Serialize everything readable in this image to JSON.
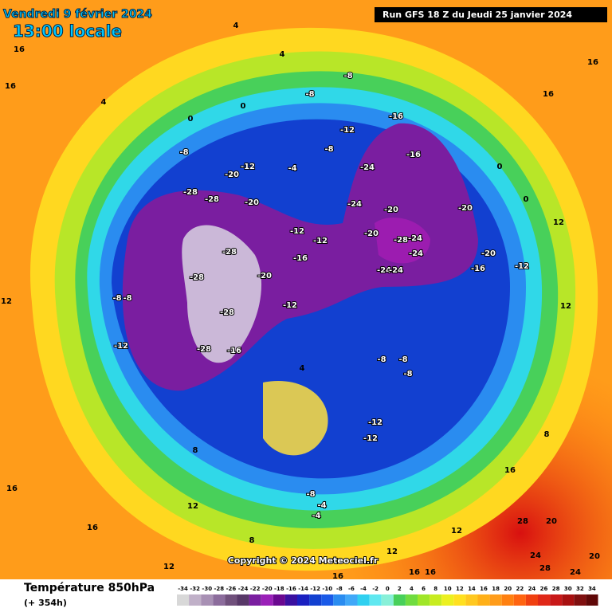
{
  "header": {
    "date": "Vendredi 9 février 2024",
    "time": "13:00 locale",
    "run": "Run GFS 18 Z du Jeudi 25 janvier 2024"
  },
  "copyright": "Copyright © 2024 Meteociel.fr",
  "legend": {
    "title": "Température 850hPa",
    "lead": "(+ 354h)",
    "scale": [
      -34,
      -32,
      -30,
      -28,
      -26,
      -24,
      -22,
      -20,
      -18,
      -16,
      -14,
      -12,
      -10,
      -8,
      -6,
      -4,
      -2,
      0,
      2,
      4,
      6,
      8,
      10,
      12,
      14,
      16,
      18,
      20,
      22,
      24,
      26,
      28,
      30,
      32,
      34
    ]
  },
  "map_labels": [
    4,
    4,
    16,
    16,
    4,
    0,
    0,
    -8,
    -8,
    -16,
    -12,
    -8,
    -16,
    -24,
    -8,
    -12,
    -4,
    -20,
    -28,
    -28,
    -20,
    -24,
    -20,
    -12,
    -12,
    -20,
    -28,
    -24,
    -24,
    -24,
    -24,
    -16,
    -28,
    -28,
    -20,
    -28,
    -12,
    -28,
    -16,
    -12,
    -8,
    -8,
    12,
    4,
    -8,
    -8,
    -8,
    -12,
    -12,
    -8,
    -4,
    -4,
    8,
    12,
    16,
    16,
    8,
    -20,
    -20,
    -16,
    -12,
    0,
    0,
    12,
    12,
    16,
    16,
    8,
    16,
    28,
    20,
    24,
    28,
    24,
    20,
    12,
    12,
    16,
    16,
    16,
    12
  ]
}
